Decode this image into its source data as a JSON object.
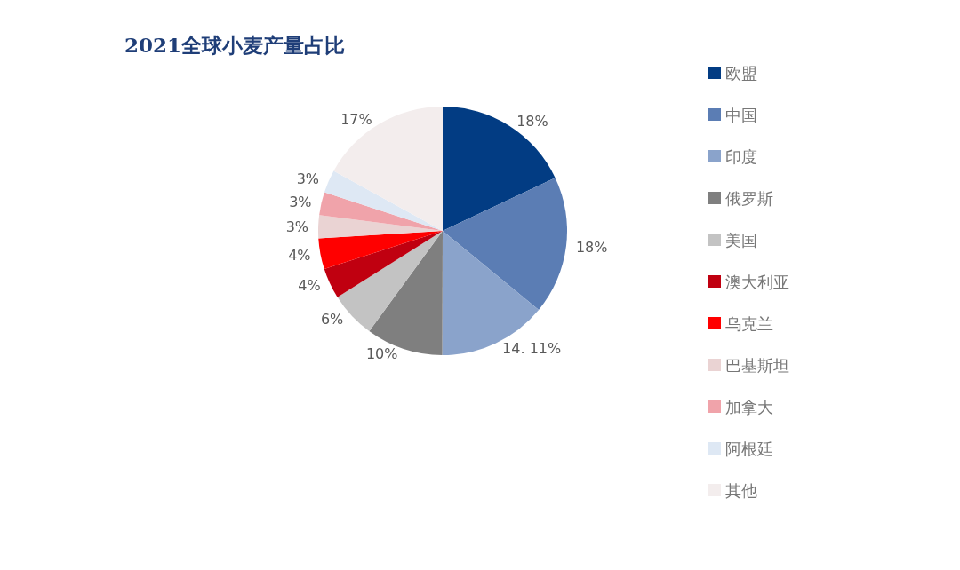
{
  "chart_data": {
    "type": "pie",
    "title": "2021全球小麦产量占比",
    "categories": [
      "欧盟",
      "中国",
      "印度",
      "俄罗斯",
      "美国",
      "澳大利亚",
      "乌克兰",
      "巴基斯坦",
      "加拿大",
      "阿根廷",
      "其他"
    ],
    "values": [
      18,
      18,
      14.11,
      10,
      6,
      4,
      4,
      3,
      3,
      3,
      17
    ],
    "colors": [
      "#023c83",
      "#5b7db4",
      "#8aa3cb",
      "#7f7f7f",
      "#c3c3c3",
      "#c00010",
      "#ff0000",
      "#ead3d3",
      "#f0a3aa",
      "#dee8f4",
      "#f3eded"
    ],
    "value_labels": [
      "18%",
      "18%",
      "14. 11%",
      "10%",
      "6%",
      "4%",
      "4%",
      "3%",
      "3%",
      "3%",
      "17%"
    ],
    "legend": "right"
  }
}
